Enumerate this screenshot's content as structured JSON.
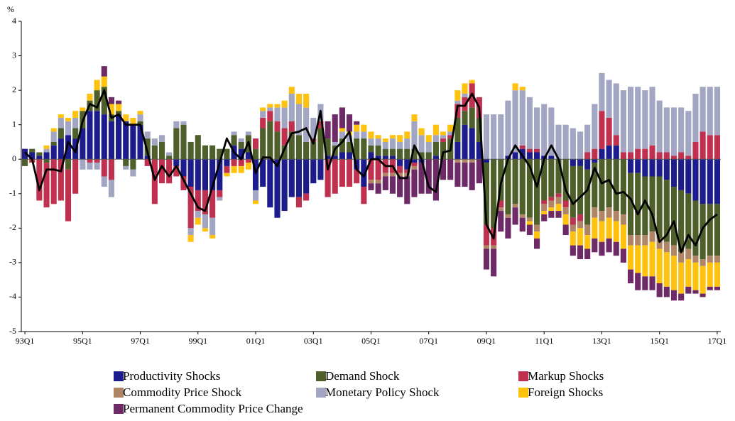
{
  "chart_data": {
    "type": "stacked_bar",
    "y_label": "%",
    "ylim": [
      -5,
      4
    ],
    "yticks": [
      -5,
      -4,
      -3,
      -2,
      -1,
      0,
      1,
      2,
      3,
      4
    ],
    "categories": [
      "93Q1",
      null,
      null,
      null,
      null,
      null,
      null,
      null,
      "95Q1",
      null,
      null,
      null,
      null,
      null,
      null,
      null,
      "97Q1",
      null,
      null,
      null,
      null,
      null,
      null,
      null,
      "99Q1",
      null,
      null,
      null,
      null,
      null,
      null,
      null,
      "01Q1",
      null,
      null,
      null,
      null,
      null,
      null,
      null,
      "03Q1",
      null,
      null,
      null,
      null,
      null,
      null,
      null,
      "05Q1",
      null,
      null,
      null,
      null,
      null,
      null,
      null,
      "07Q1",
      null,
      null,
      null,
      null,
      null,
      null,
      null,
      "09Q1",
      null,
      null,
      null,
      null,
      null,
      null,
      null,
      "11Q1",
      null,
      null,
      null,
      null,
      null,
      null,
      null,
      "13Q1",
      null,
      null,
      null,
      null,
      null,
      null,
      null,
      "15Q1",
      null,
      null,
      null,
      null,
      null,
      null,
      null,
      "17Q1"
    ],
    "series": [
      {
        "name": "Productivity Shocks",
        "color": "#1c1c8c",
        "values": [
          0.3,
          0.2,
          0.1,
          0.2,
          0.4,
          0.6,
          0.7,
          0.6,
          0.9,
          1.4,
          1.4,
          1.3,
          1.1,
          1.3,
          1.1,
          1.0,
          1.0,
          0.1,
          0,
          0,
          0,
          -0.2,
          -0.5,
          -0.8,
          -0.9,
          -0.9,
          -0.9,
          -0.9,
          -0.2,
          0.4,
          0.3,
          0.2,
          -0.9,
          -0.8,
          -1.4,
          -1.7,
          -1.5,
          -1.1,
          -1.1,
          -1.0,
          -0.7,
          -0.6,
          0.1,
          0.1,
          0.2,
          0.2,
          -0.3,
          -0.8,
          0.2,
          0.1,
          0.1,
          0.1,
          -0.2,
          -0.3,
          -0.1,
          -0.1,
          0,
          0.1,
          0,
          0,
          0.5,
          1.0,
          0.9,
          0.5,
          -0.1,
          0,
          0,
          0.1,
          0.2,
          0.3,
          0.2,
          0.2,
          0.1,
          0.1,
          0,
          0,
          -0.2,
          -0.2,
          -0.3,
          -0.1,
          0.3,
          0.4,
          0.4,
          0,
          -0.4,
          -0.4,
          -0.5,
          -0.5,
          -0.5,
          -0.6,
          -0.8,
          -0.9,
          -1.0,
          -1.2,
          -1.3,
          -1.3,
          -1.3
        ]
      },
      {
        "name": "Demand Shock",
        "color": "#4f5f2a",
        "values": [
          -0.2,
          0.1,
          0.1,
          -0.1,
          0.1,
          0.3,
          -0.3,
          0.3,
          0.5,
          0.3,
          0.6,
          0.8,
          0.2,
          0.1,
          -0.2,
          -0.3,
          0.1,
          0.5,
          0.4,
          0.5,
          0.1,
          0.9,
          1.0,
          0.5,
          0.7,
          0.4,
          0.4,
          0.3,
          0.3,
          0.3,
          0.2,
          0.5,
          0.3,
          0.9,
          1.1,
          0.8,
          0.4,
          0.8,
          0.7,
          0.5,
          0.5,
          0.9,
          0.5,
          0.3,
          0.4,
          0.3,
          0.6,
          0.6,
          0.2,
          0.3,
          0.2,
          0.2,
          0.3,
          0.3,
          0.3,
          0.2,
          0.2,
          0.4,
          0.5,
          0.6,
          0.7,
          0.4,
          0.6,
          0.7,
          -1.8,
          -2.0,
          -1.2,
          -1.6,
          -1.3,
          -1.6,
          -1.7,
          -1.9,
          -1.2,
          -1.1,
          -1.0,
          -1.2,
          -1.5,
          -1.4,
          -1.6,
          -1.3,
          -1.5,
          -1.4,
          -1.5,
          -1.6,
          -1.8,
          -1.8,
          -1.7,
          -1.6,
          -1.8,
          -1.8,
          -1.7,
          -1.8,
          -1.6,
          -1.6,
          -1.6,
          -1.5,
          -1.5
        ]
      },
      {
        "name": "Markup Shocks",
        "color": "#c0304f",
        "values": [
          0,
          -0.1,
          -1.2,
          -1.3,
          -1.3,
          -1.2,
          -1.5,
          -1.0,
          0,
          -0.1,
          -0.1,
          -0.5,
          -0.6,
          0,
          0,
          0,
          0,
          -0.2,
          -1.3,
          -0.7,
          -0.7,
          -0.3,
          -0.4,
          -1.2,
          -0.6,
          -0.7,
          -0.8,
          -0.2,
          -0.2,
          -0.2,
          -0.2,
          -0.1,
          0.3,
          0.3,
          0.3,
          0.3,
          0.5,
          0.3,
          -0.3,
          -0.2,
          0.1,
          0.2,
          -1.1,
          -1.0,
          -0.8,
          -0.8,
          -0.4,
          -0.5,
          -0.6,
          -0.6,
          -0.4,
          -0.4,
          -0.2,
          -0.1,
          -0.1,
          0,
          0,
          0,
          0.1,
          0.1,
          0.4,
          0.4,
          0.7,
          0.6,
          -0.6,
          -0.5,
          -0.2,
          0,
          0,
          0.1,
          0.1,
          0.1,
          -0.1,
          -0.1,
          -0.1,
          -0.2,
          -0.2,
          -0.2,
          0.2,
          0.3,
          1.1,
          0.8,
          0.3,
          0.2,
          0.2,
          0.3,
          0.3,
          0.4,
          0.2,
          0.2,
          0.1,
          0.2,
          0.1,
          0.5,
          0.8,
          0.7,
          0.7
        ]
      },
      {
        "name": "Commodity Price Shock",
        "color": "#b08565",
        "values": [
          0,
          0,
          0,
          0,
          0,
          0,
          0,
          0,
          0,
          0,
          0,
          0,
          0,
          0,
          0,
          0,
          0,
          0,
          0,
          0,
          0,
          0,
          0,
          0,
          0,
          0,
          0,
          0,
          0,
          0,
          0,
          0,
          0,
          0,
          0,
          0,
          0,
          0,
          0,
          0,
          0,
          0,
          0,
          0,
          0,
          0,
          0,
          0,
          -0.1,
          -0.1,
          -0.1,
          -0.1,
          -0.1,
          -0.1,
          -0.1,
          0,
          0,
          0,
          0,
          0,
          -0.1,
          -0.1,
          -0.1,
          0,
          -0.1,
          -0.1,
          -0.1,
          -0.1,
          -0.1,
          -0.1,
          -0.1,
          -0.2,
          -0.2,
          -0.2,
          -0.2,
          -0.2,
          -0.2,
          -0.2,
          -0.3,
          -0.3,
          -0.3,
          -0.3,
          -0.3,
          -0.3,
          -0.3,
          -0.3,
          -0.3,
          -0.3,
          -0.3,
          -0.3,
          -0.3,
          -0.3,
          -0.3,
          -0.2,
          -0.2,
          -0.2,
          -0.2
        ]
      },
      {
        "name": "Monetary Policy Shock",
        "color": "#a3a6c2",
        "values": [
          0,
          0,
          0,
          0.1,
          0.3,
          0.3,
          0.4,
          0.3,
          -0.3,
          -0.2,
          -0.2,
          -0.3,
          -0.5,
          0,
          -0.1,
          -0.2,
          0.2,
          0.2,
          0.2,
          0.2,
          0.1,
          0.2,
          0.1,
          -0.2,
          -0.2,
          -0.4,
          -0.5,
          -0.1,
          0,
          0.1,
          0.1,
          0.1,
          -0.3,
          0.2,
          0.1,
          0.4,
          0.6,
          0.8,
          0.9,
          1.0,
          0.6,
          0.5,
          0,
          0.1,
          0.2,
          0.2,
          0.2,
          0.2,
          0.2,
          0.2,
          0.2,
          0.3,
          0.2,
          0.3,
          0.8,
          0.5,
          0.3,
          0.2,
          0.1,
          0.1,
          0.1,
          0.1,
          0,
          0,
          1.3,
          1.3,
          1.3,
          1.6,
          1.8,
          1.6,
          1.5,
          1.2,
          1.5,
          1.4,
          1.0,
          1.0,
          0.9,
          0.8,
          0.8,
          1.3,
          1.1,
          1.1,
          1.5,
          1.8,
          1.9,
          1.8,
          1.7,
          1.7,
          1.5,
          1.3,
          1.4,
          1.3,
          1.3,
          1.4,
          1.3,
          1.4,
          1.4
        ]
      },
      {
        "name": "Foreign Shocks",
        "color": "#ffc30f",
        "values": [
          0,
          0,
          0,
          0.1,
          0.1,
          0.1,
          0.1,
          0.2,
          0.1,
          0.2,
          0.3,
          0.3,
          0.3,
          0.2,
          0.2,
          0.2,
          0.1,
          0,
          0,
          0,
          0,
          0,
          0,
          -0.2,
          -0.2,
          -0.1,
          -0.1,
          0,
          -0.1,
          -0.2,
          -0.2,
          -0.2,
          -0.1,
          0.1,
          0.1,
          0.1,
          0.2,
          0.2,
          0.3,
          0.4,
          0,
          0,
          0,
          0,
          0.1,
          0.1,
          0.2,
          0.2,
          0.2,
          0.1,
          0.1,
          0.1,
          0.2,
          0.2,
          0.2,
          0.2,
          0.2,
          0.3,
          0.1,
          0.2,
          0.3,
          0.3,
          0.1,
          0,
          0,
          0,
          0,
          0,
          0.2,
          0.1,
          -0.1,
          -0.2,
          -0.1,
          -0.1,
          -0.2,
          -0.3,
          -0.4,
          -0.5,
          -0.4,
          -0.6,
          -0.6,
          -0.6,
          -0.6,
          -0.7,
          -0.7,
          -0.8,
          -0.9,
          -1.0,
          -1.0,
          -1.0,
          -1.0,
          -0.9,
          -0.8,
          -0.8,
          -0.8,
          -0.7,
          -0.7
        ]
      },
      {
        "name": "Permanent Commodity Price Change",
        "color": "#6d2a66",
        "values": [
          0,
          0,
          0,
          0,
          0,
          0,
          0,
          0,
          0,
          0,
          0,
          0.3,
          0.2,
          0.1,
          0,
          0,
          0,
          0,
          0,
          0,
          0,
          0,
          0,
          0,
          0,
          0,
          0,
          0,
          0,
          0,
          0,
          0,
          0,
          0,
          0,
          0,
          0,
          0,
          0,
          0,
          0,
          0,
          0.5,
          0.8,
          0.6,
          0.5,
          0.1,
          0,
          -0.2,
          -0.3,
          -0.4,
          -0.5,
          -0.6,
          -0.8,
          -0.8,
          -0.9,
          -1.0,
          -1.2,
          -0.6,
          -0.6,
          -0.7,
          -0.7,
          -0.8,
          -0.7,
          -0.6,
          -0.8,
          -0.6,
          -0.6,
          -0.5,
          -0.4,
          -0.3,
          -0.3,
          -0.2,
          -0.2,
          -0.2,
          -0.3,
          -0.3,
          -0.4,
          -0.3,
          -0.4,
          -0.4,
          -0.4,
          -0.4,
          -0.4,
          -0.4,
          -0.5,
          -0.4,
          -0.4,
          -0.4,
          -0.3,
          -0.3,
          -0.2,
          -0.2,
          -0.1,
          -0.1,
          -0.1,
          -0.1
        ]
      }
    ],
    "total": {
      "color": "#000000",
      "values": [
        0.2,
        0,
        -0.9,
        -0.3,
        -0.3,
        -0.35,
        0.5,
        0.2,
        1.1,
        1.6,
        1.5,
        2.0,
        1.2,
        1.3,
        1.0,
        1.0,
        1.0,
        0.2,
        -0.6,
        -0.2,
        -0.5,
        -0.2,
        -0.6,
        -1.0,
        -1.4,
        -1.5,
        -0.8,
        -0.1,
        0.6,
        0.2,
        0,
        0.5,
        -0.4,
        0.05,
        0.05,
        -0.2,
        0.3,
        0.75,
        0.8,
        0.9,
        0.45,
        1.4,
        -0.3,
        0.3,
        0.5,
        0.8,
        -0.3,
        -0.5,
        0,
        0,
        -0.2,
        -0.2,
        -0.55,
        -0.55,
        0.4,
        0,
        -0.8,
        -0.95,
        0.2,
        0.25,
        1.55,
        1.55,
        1.9,
        1.5,
        -1.9,
        -2.3,
        -0.7,
        0,
        0.4,
        0.1,
        -0.2,
        -0.8,
        0,
        0.4,
        0,
        -0.9,
        -1.3,
        -1.1,
        -0.9,
        -0.25,
        -0.7,
        -0.6,
        -1.0,
        -0.95,
        -1.15,
        -1.6,
        -1.2,
        -1.6,
        -2.4,
        -2.2,
        -1.8,
        -2.7,
        -2.2,
        -2.5,
        -2.0,
        -1.75,
        -1.6
      ]
    }
  }
}
